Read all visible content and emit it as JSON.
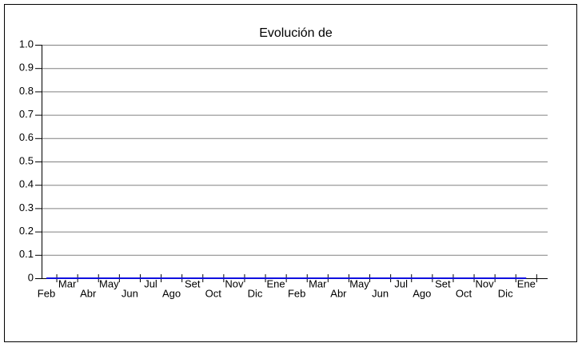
{
  "chart_data": {
    "type": "line",
    "title": "Evolución de",
    "categories": [
      "Feb",
      "Mar",
      "Abr",
      "May",
      "Jun",
      "Jul",
      "Ago",
      "Set",
      "Oct",
      "Nov",
      "Dic",
      "Ene",
      "Feb",
      "Mar",
      "Abr",
      "May",
      "Jun",
      "Jul",
      "Ago",
      "Set",
      "Oct",
      "Nov",
      "Dic",
      "Ene"
    ],
    "values": [
      0,
      0,
      0,
      0,
      0,
      0,
      0,
      0,
      0,
      0,
      0,
      0,
      0,
      0,
      0,
      0,
      0,
      0,
      0,
      0,
      0,
      0,
      0,
      0
    ],
    "color": "#1010e0",
    "ylim": [
      0,
      1
    ],
    "yticks": [
      0,
      0.1,
      0.2,
      0.3,
      0.4,
      0.5,
      0.6,
      0.7,
      0.8,
      0.9,
      {
        "value": 1,
        "label": "1.0"
      }
    ],
    "grid": true
  }
}
